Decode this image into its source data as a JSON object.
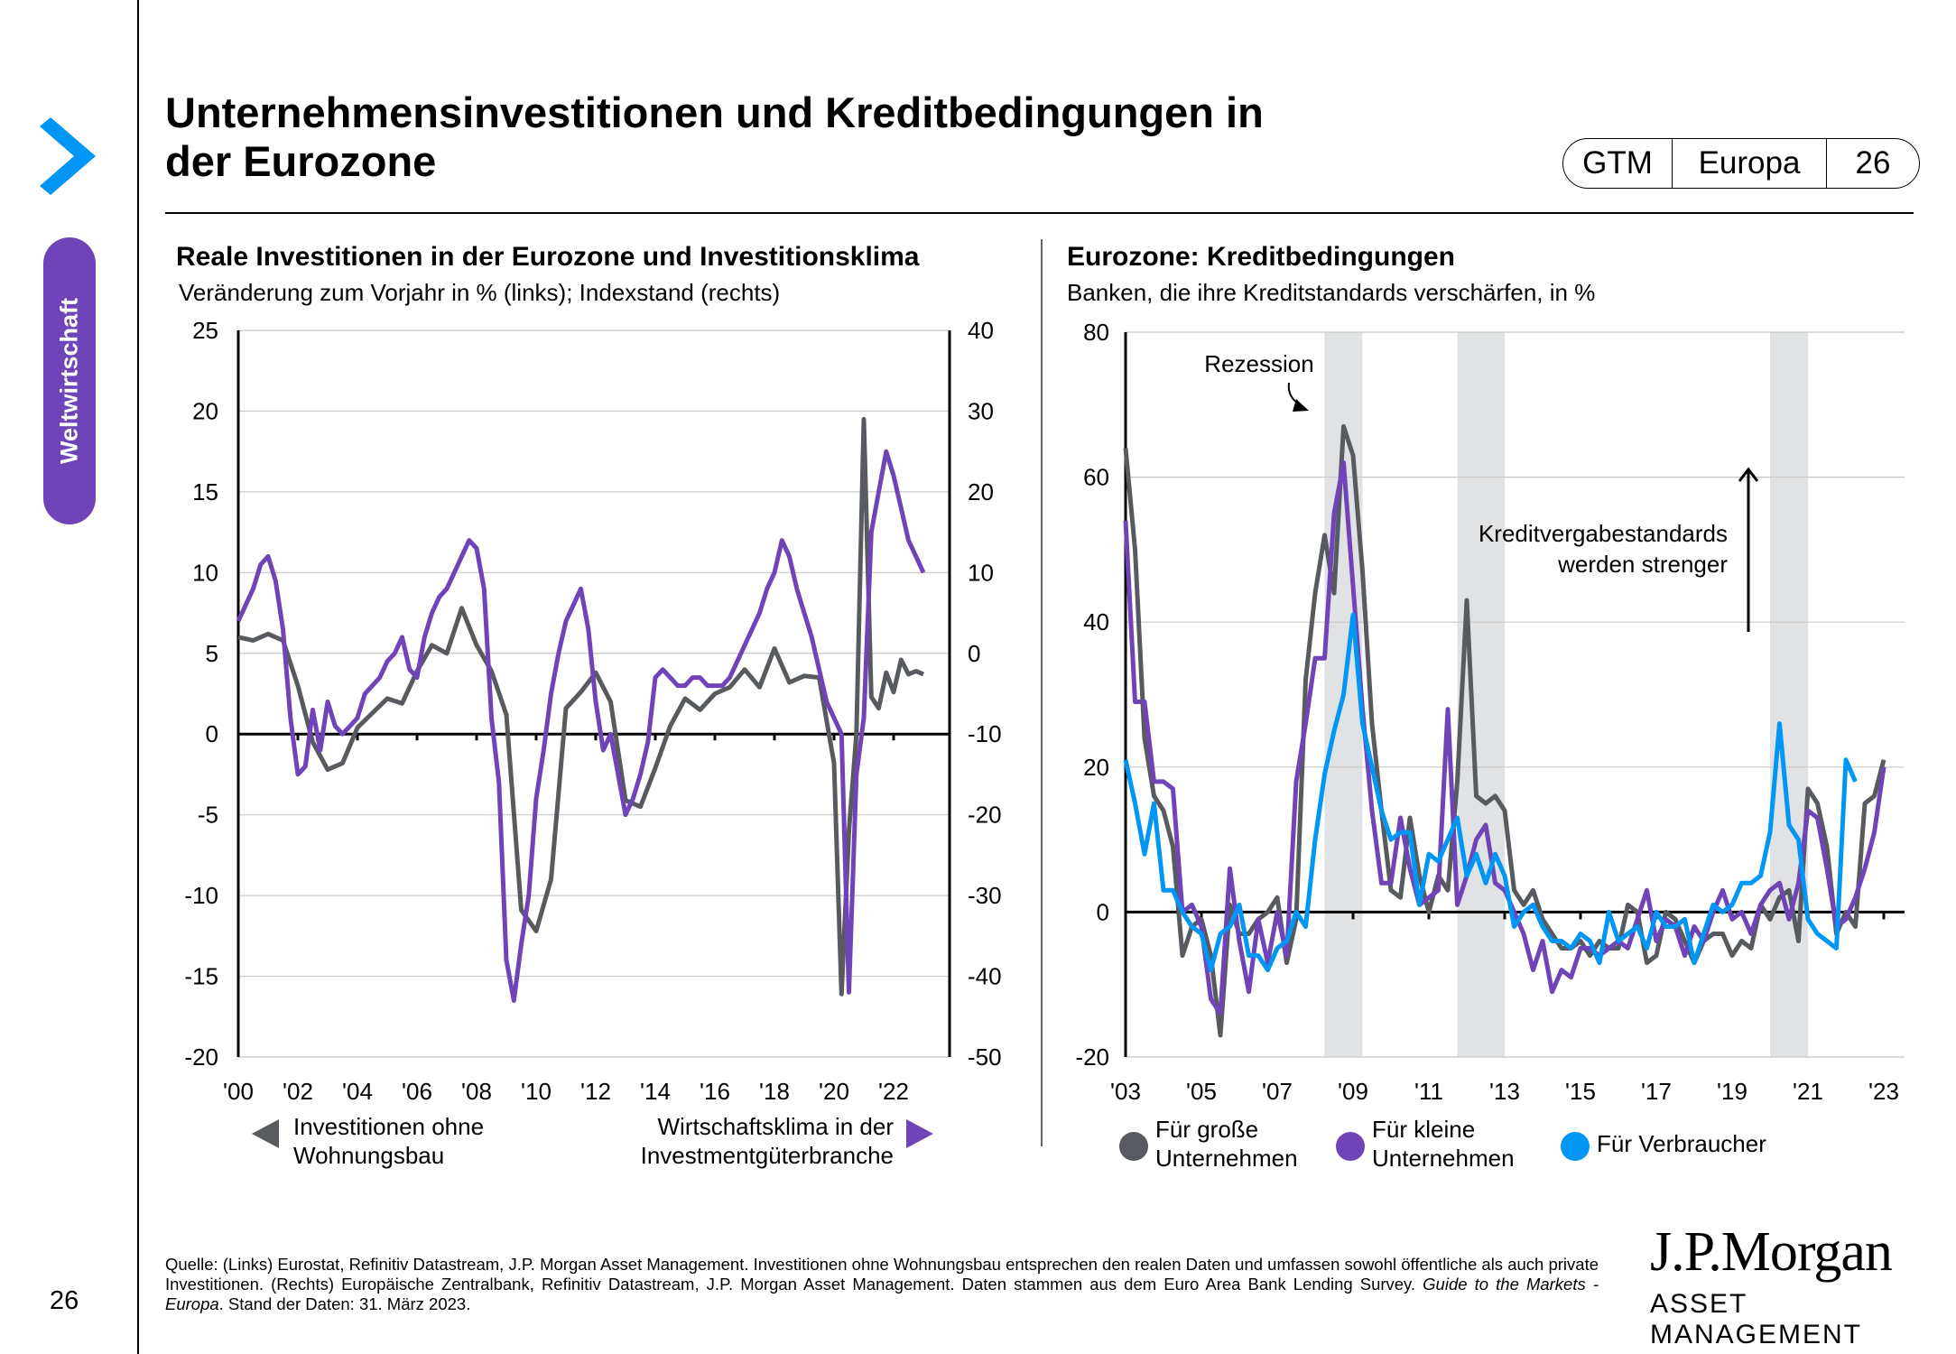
{
  "sidebar": {
    "section_label": "Weltwirtschaft",
    "page_number": "26",
    "nav_icon": "chevron-right-icon"
  },
  "header": {
    "title_line1": "Unternehmensinvestitionen und Kreditbedingungen in",
    "title_line2": "der Eurozone",
    "tag": {
      "a": "GTM",
      "b": "Europa",
      "c": "26"
    }
  },
  "colors": {
    "gray": "#575a5e",
    "purple": "#6f44b8",
    "blue": "#0096f5",
    "recession": "#e1e2e4",
    "grid": "#c8c8c8"
  },
  "chart_data": [
    {
      "type": "line",
      "title": "Reale Investitionen in der Eurozone und Investitionsklima",
      "subtitle": "Veränderung zum Vorjahr in % (links); Indexstand (rechts)",
      "xlabel": "",
      "ylabel_left": "Veränderung zum Vorjahr in %",
      "ylabel_right": "Indexstand",
      "xlim": [
        2000,
        2023.25
      ],
      "ylim_left": [
        -20,
        25
      ],
      "ylim_right": [
        -50,
        40
      ],
      "yticks_left": [
        "25",
        "20",
        "15",
        "10",
        "5",
        "0",
        "-5",
        "-10",
        "-15",
        "-20"
      ],
      "yticks_right": [
        "40",
        "30",
        "20",
        "10",
        "0",
        "-10",
        "-20",
        "-30",
        "-40",
        "-50"
      ],
      "xticks": [
        "'00",
        "'02",
        "'04",
        "'06",
        "'08",
        "'10",
        "'12",
        "'14",
        "'16",
        "'18",
        "'20",
        "'22"
      ],
      "grid": true,
      "legend": [
        {
          "label_line1": "Investitionen ohne",
          "label_line2": "Wohnungsbau",
          "axis_hint": "links",
          "marker": "triangle-left"
        },
        {
          "label_line1": "Wirtschaftsklima in der",
          "label_line2": "Investmentgüterbranche",
          "axis_hint": "rechts",
          "marker": "triangle-right"
        }
      ],
      "series": [
        {
          "name": "Investitionen ohne Wohnungsbau",
          "axis": "left",
          "color": "#575a5e",
          "x": [
            2000,
            2000.5,
            2001,
            2001.5,
            2002,
            2002.5,
            2003,
            2003.5,
            2004,
            2004.5,
            2005,
            2005.5,
            2006,
            2006.5,
            2007,
            2007.5,
            2008,
            2008.5,
            2009,
            2009.5,
            2010,
            2010.5,
            2011,
            2011.5,
            2012,
            2012.5,
            2013,
            2013.5,
            2014,
            2014.5,
            2015,
            2015.5,
            2016,
            2016.5,
            2017,
            2017.5,
            2018,
            2018.5,
            2019,
            2019.5,
            2020,
            2020.25,
            2020.5,
            2020.75,
            2021,
            2021.25,
            2021.5,
            2021.75,
            2022,
            2022.25,
            2022.5,
            2022.75,
            2023
          ],
          "values": [
            6.0,
            5.8,
            6.2,
            5.8,
            3.0,
            -0.5,
            -2.2,
            -1.8,
            0.4,
            1.3,
            2.2,
            1.9,
            3.9,
            5.5,
            5.0,
            7.8,
            5.5,
            3.9,
            1.2,
            -10.9,
            -12.2,
            -9.0,
            1.6,
            2.6,
            3.8,
            2.0,
            -4.1,
            -4.5,
            -2.1,
            0.5,
            2.2,
            1.5,
            2.5,
            2.9,
            4.0,
            2.9,
            5.3,
            3.2,
            3.6,
            3.5,
            -1.8,
            -16.1,
            -6.0,
            0.0,
            19.5,
            2.3,
            1.6,
            3.8,
            2.6,
            4.6,
            3.7,
            3.9,
            3.7
          ]
        },
        {
          "name": "Wirtschaftsklima in der Investmentgüterbranche",
          "axis": "right",
          "color": "#6f44b8",
          "x": [
            2000,
            2000.25,
            2000.5,
            2000.75,
            2001,
            2001.25,
            2001.5,
            2001.75,
            2002,
            2002.25,
            2002.5,
            2002.75,
            2003,
            2003.25,
            2003.5,
            2003.75,
            2004,
            2004.25,
            2004.5,
            2004.75,
            2005,
            2005.25,
            2005.5,
            2005.75,
            2006,
            2006.25,
            2006.5,
            2006.75,
            2007,
            2007.25,
            2007.5,
            2007.75,
            2008,
            2008.25,
            2008.5,
            2008.75,
            2009,
            2009.25,
            2009.5,
            2009.75,
            2010,
            2010.25,
            2010.5,
            2010.75,
            2011,
            2011.25,
            2011.5,
            2011.75,
            2012,
            2012.25,
            2012.5,
            2012.75,
            2013,
            2013.25,
            2013.5,
            2013.75,
            2014,
            2014.25,
            2014.5,
            2014.75,
            2015,
            2015.25,
            2015.5,
            2015.75,
            2016,
            2016.25,
            2016.5,
            2016.75,
            2017,
            2017.25,
            2017.5,
            2017.75,
            2018,
            2018.25,
            2018.5,
            2018.75,
            2019,
            2019.25,
            2019.5,
            2019.75,
            2020,
            2020.25,
            2020.5,
            2020.75,
            2021,
            2021.25,
            2021.5,
            2021.75,
            2022,
            2022.25,
            2022.5,
            2022.75,
            2023
          ],
          "values": [
            4,
            6,
            8,
            11,
            12,
            9,
            3,
            -8,
            -15,
            -14,
            -7,
            -12,
            -6,
            -9,
            -10,
            -9,
            -8,
            -5,
            -4,
            -3,
            -1,
            0,
            2,
            -2,
            -3,
            2,
            5,
            7,
            8,
            10,
            12,
            14,
            13,
            8,
            -8,
            -16,
            -38,
            -43,
            -36,
            -30,
            -18,
            -12,
            -5,
            0,
            4,
            6,
            8,
            3,
            -6,
            -12,
            -10,
            -15,
            -20,
            -18,
            -15,
            -11,
            -3,
            -2,
            -3,
            -4,
            -4,
            -3,
            -3,
            -4,
            -4,
            -4,
            -3,
            -1,
            1,
            3,
            5,
            8,
            10,
            14,
            12,
            8,
            5,
            2,
            -2,
            -6,
            -8,
            -10,
            -42,
            -15,
            -8,
            15,
            20,
            25,
            22,
            18,
            14,
            12,
            10
          ]
        }
      ],
      "xaxis_baseline": 0
    },
    {
      "type": "line",
      "title": "Eurozone: Kreditbedingungen",
      "subtitle": "Banken, die ihre Kreditstandards verschärfen, in %",
      "xlabel": "",
      "ylabel": "%",
      "xlim": [
        2003,
        2023.1
      ],
      "ylim": [
        -20,
        80
      ],
      "yticks": [
        "80",
        "60",
        "40",
        "20",
        "0",
        "-20"
      ],
      "xticks": [
        "'03",
        "'05",
        "'07",
        "'09",
        "'11",
        "'13",
        "'15",
        "'17",
        "'19",
        "'21",
        "'23"
      ],
      "grid": true,
      "legend_position": "bottom",
      "recessions": [
        [
          2008.25,
          2009.25
        ],
        [
          2011.75,
          2013.0
        ],
        [
          2020.0,
          2021.0
        ]
      ],
      "annotations": [
        {
          "text": "Rezession",
          "arrow": "curved-down-right"
        },
        {
          "text_line1": "Kreditvergabestandards",
          "text_line2": "werden strenger",
          "arrow": "up"
        }
      ],
      "x_start": 2003.0,
      "x_step": 0.25,
      "series": [
        {
          "name": "Für große Unternehmen",
          "color": "#575a5e",
          "values": [
            64,
            50,
            24,
            16,
            14,
            9,
            -6,
            -2,
            -1,
            -6,
            -17,
            1,
            -3,
            -3,
            -1,
            0,
            2,
            -7,
            -1,
            32,
            44,
            52,
            44,
            67,
            63,
            47,
            26,
            14,
            3,
            2,
            13,
            5,
            0,
            5,
            3,
            18,
            43,
            16,
            15,
            16,
            14,
            3,
            1,
            3,
            -1,
            -3,
            -5,
            -5,
            -4,
            -6,
            -4,
            -5,
            -5,
            1,
            0,
            -7,
            -6,
            0,
            -1,
            -4,
            -7,
            -4,
            -3,
            -3,
            -6,
            -4,
            -5,
            1,
            -1,
            2,
            3,
            -4,
            17,
            15,
            9,
            -3,
            0,
            -2,
            15,
            16,
            21
          ]
        },
        {
          "name": "Für kleine Unternehmen",
          "color": "#6f44b8",
          "values": [
            54,
            29,
            29,
            18,
            18,
            17,
            0,
            1,
            -2,
            -12,
            -14,
            6,
            -4,
            -11,
            -1,
            -7,
            0,
            -6,
            18,
            26,
            35,
            35,
            55,
            62,
            45,
            28,
            14,
            4,
            4,
            13,
            6,
            1,
            2,
            3,
            28,
            1,
            5,
            10,
            12,
            4,
            3,
            0,
            -3,
            -8,
            -4,
            -11,
            -8,
            -9,
            -5,
            -5,
            -6,
            -5,
            -4,
            -5,
            -1,
            3,
            -4,
            -1,
            -2,
            -6,
            -2,
            -4,
            0,
            3,
            -1,
            0,
            -3,
            1,
            3,
            4,
            -1,
            4,
            14,
            13,
            6,
            -2,
            -1,
            2,
            6,
            11,
            20
          ]
        },
        {
          "name": "Für Verbraucher",
          "color": "#0096f5",
          "values": [
            21,
            15,
            8,
            15,
            3,
            3,
            0,
            -2,
            -3,
            -8,
            -3,
            -2,
            1,
            -6,
            -6,
            -8,
            -5,
            -4,
            0,
            -2,
            10,
            19,
            25,
            30,
            41,
            26,
            20,
            14,
            10,
            11,
            11,
            1,
            8,
            7,
            10,
            13,
            5,
            8,
            4,
            8,
            5,
            -2,
            0,
            1,
            -2,
            -4,
            -4,
            -5,
            -3,
            -4,
            -7,
            0,
            -4,
            -3,
            -2,
            -5,
            0,
            -2,
            -2,
            -1,
            -7,
            -3,
            1,
            0,
            1,
            4,
            4,
            5,
            11,
            26,
            12,
            10,
            -1,
            -3,
            -4,
            -5,
            21,
            18
          ]
        }
      ]
    }
  ],
  "footer": {
    "source_part1": "Quelle: (Links) Eurostat, Refinitiv Datastream, J.P. Morgan Asset Management. Investitionen ohne Wohnungsbau entsprechen den realen Daten und umfassen sowohl öffentliche als auch private Investitionen. (Rechts) Europäische Zentralbank, Refinitiv Datastream, J.P. Morgan Asset Management. Daten stammen aus dem Euro Area Bank Lending Survey. ",
    "source_italic": "Guide to the Markets - Europa",
    "source_part2": ". Stand der Daten: 31. März 2023."
  },
  "logo": {
    "line1": "J.P.Morgan",
    "line2": "ASSET MANAGEMENT"
  }
}
